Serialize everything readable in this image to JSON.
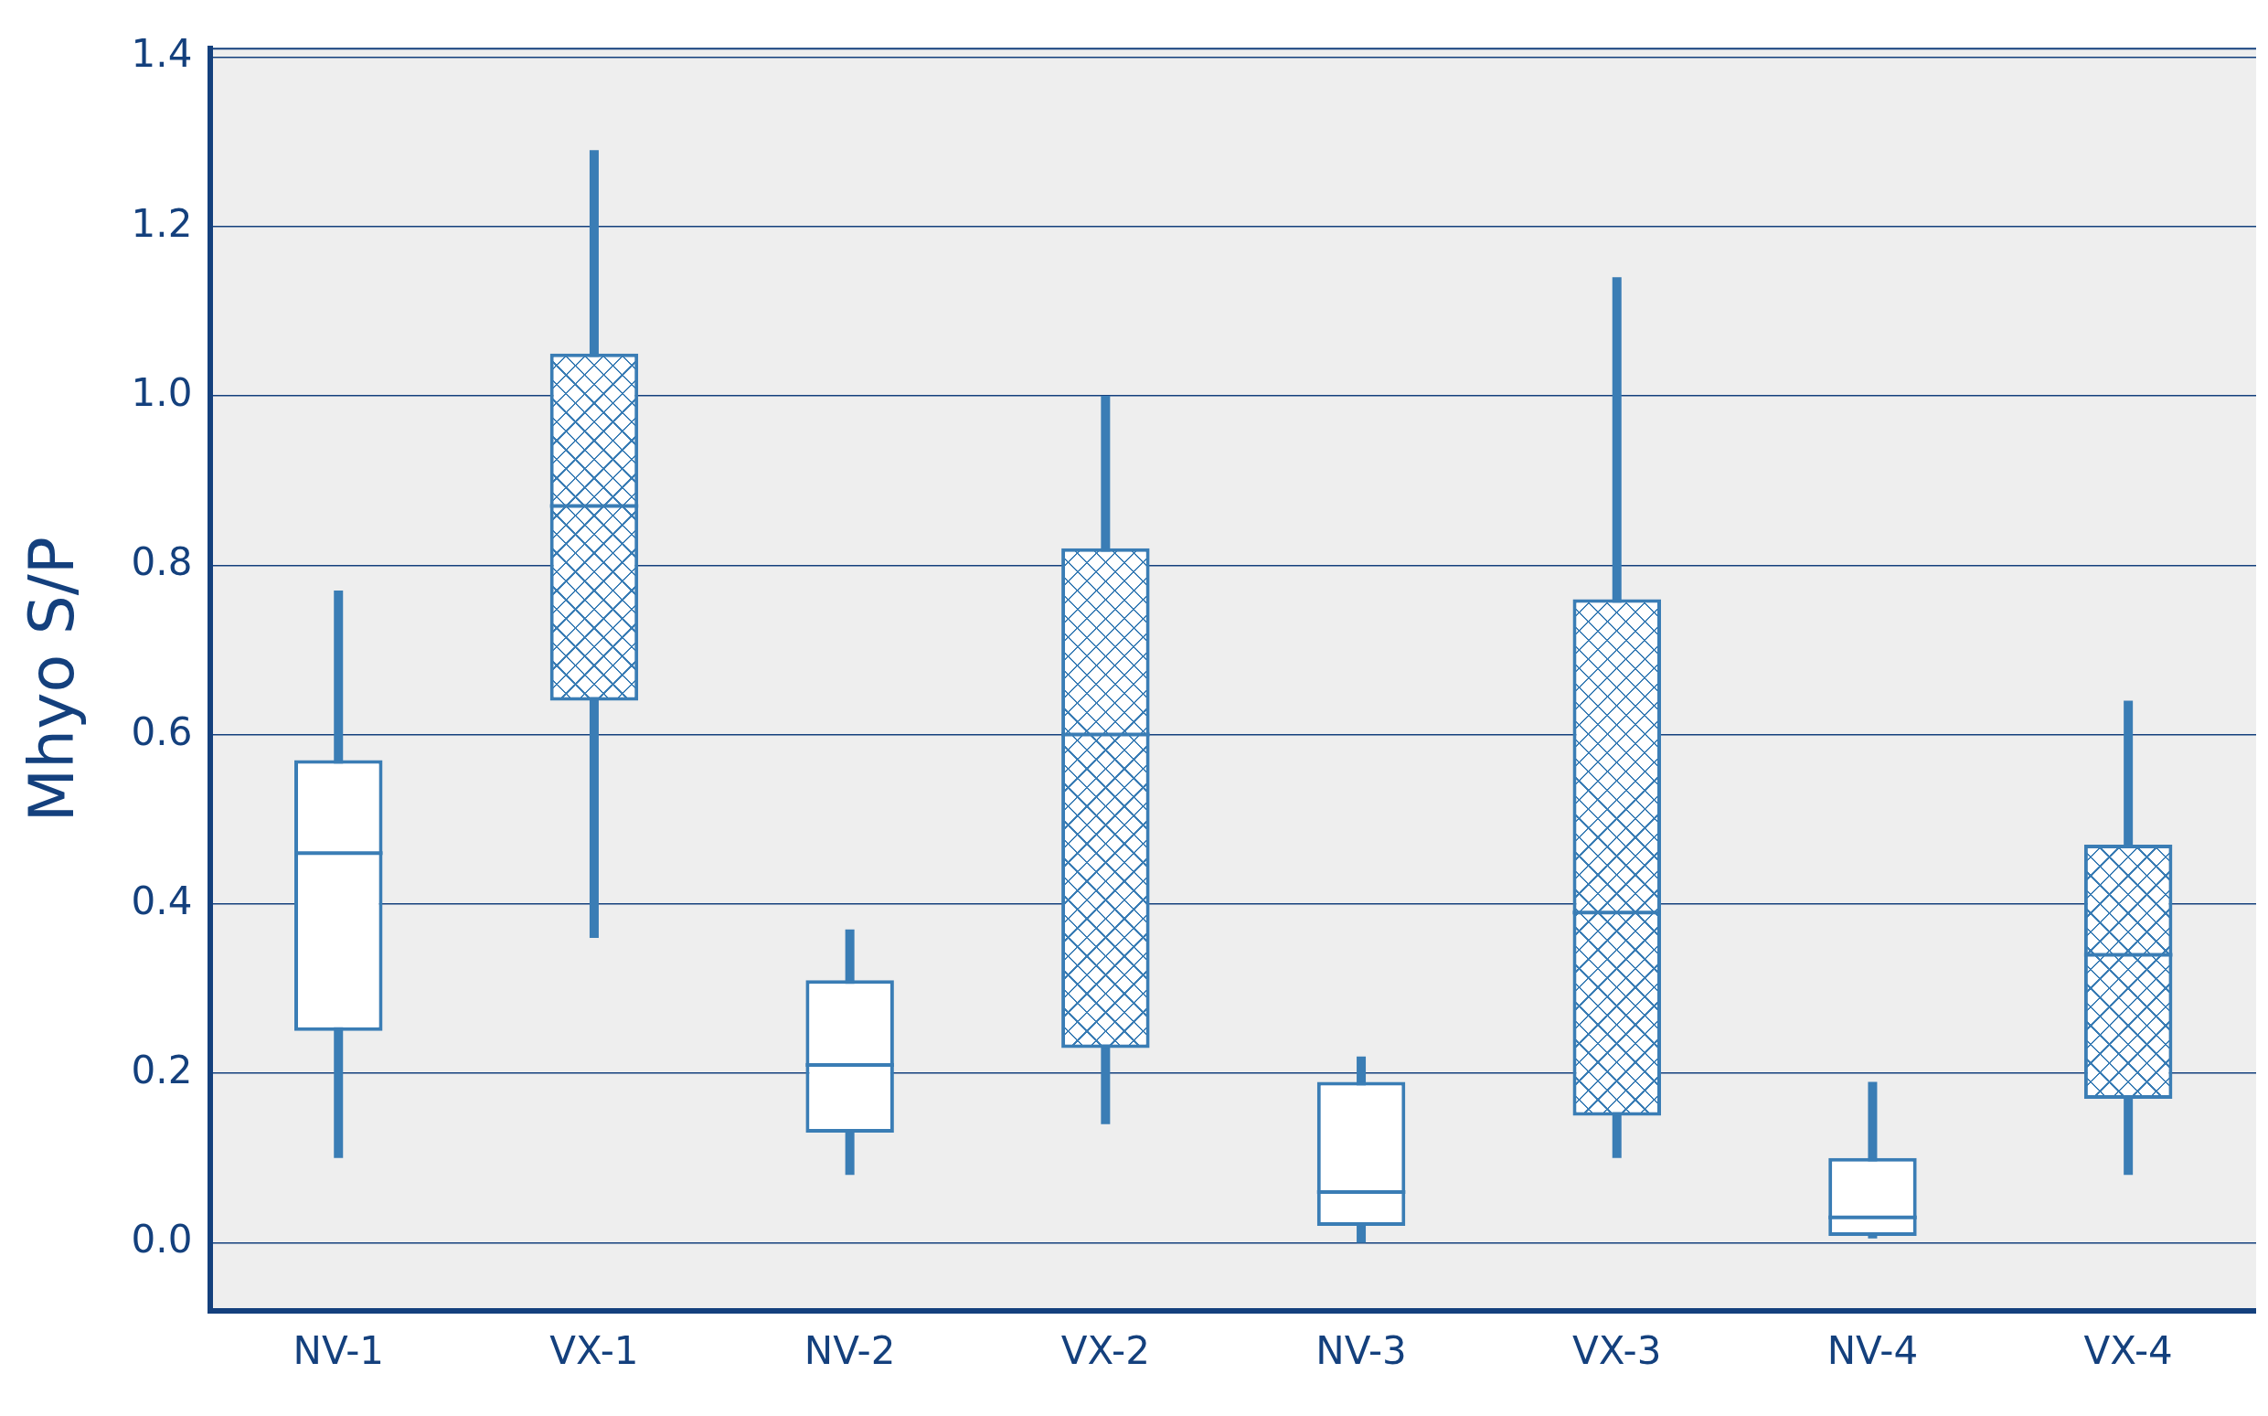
{
  "chart_data": {
    "type": "box",
    "ylabel": "Mhyo S/P",
    "categories": [
      "NV-1",
      "VX-1",
      "NV-2",
      "VX-2",
      "NV-3",
      "VX-3",
      "NV-4",
      "VX-4"
    ],
    "series": [
      {
        "color": "#3a7db5",
        "boxes": [
          {
            "low": 0.1,
            "q1": 0.25,
            "median": 0.46,
            "q3": 0.57,
            "high": 0.77
          },
          null,
          {
            "low": 0.08,
            "q1": 0.13,
            "median": 0.21,
            "q3": 0.31,
            "high": 0.37
          },
          null,
          {
            "low": 0.0,
            "q1": 0.02,
            "median": 0.06,
            "q3": 0.19,
            "high": 0.22
          },
          null,
          {
            "low": 0.005,
            "q1": 0.008,
            "median": 0.03,
            "q3": 0.1,
            "high": 0.19
          },
          null
        ]
      },
      {
        "color": "#3a7db5",
        "boxes": [
          null,
          {
            "low": 0.36,
            "q1": 0.64,
            "median": 0.87,
            "q3": 1.05,
            "high": 1.29
          },
          null,
          {
            "low": 0.14,
            "q1": 0.23,
            "median": 0.6,
            "q3": 0.82,
            "high": 1.0
          },
          null,
          {
            "low": 0.1,
            "q1": 0.15,
            "median": 0.39,
            "q3": 0.76,
            "high": 1.14
          },
          null,
          {
            "low": 0.08,
            "q1": 0.17,
            "median": 0.34,
            "q3": 0.47,
            "high": 0.64
          }
        ]
      }
    ],
    "ylim": [
      -0.08,
      1.41
    ],
    "yticks": [
      {
        "value": 0,
        "label": "0.0"
      },
      0.2,
      0.4,
      0.6,
      0.8,
      {
        "value": 1,
        "label": "1.0"
      },
      1.2,
      1.4
    ],
    "grid": "y",
    "legend": false
  }
}
